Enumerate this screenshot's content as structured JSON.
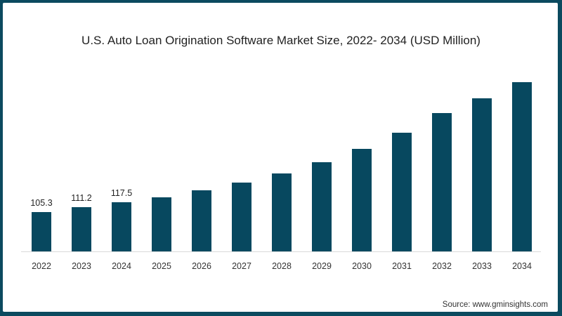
{
  "chart_data": {
    "type": "bar",
    "title": "U.S. Auto Loan Origination Software Market Size, 2022- 2034 (USD Million)",
    "xlabel": "",
    "ylabel": "USD Million",
    "categories": [
      "2022",
      "2023",
      "2024",
      "2025",
      "2026",
      "2027",
      "2028",
      "2029",
      "2030",
      "2031",
      "2032",
      "2033",
      "2034"
    ],
    "values": [
      105.3,
      111.2,
      117.5,
      124.7,
      134.1,
      144.4,
      156.6,
      171.6,
      189.4,
      211.0,
      237.3,
      257.0,
      278.6
    ],
    "data_labels": [
      "105.3",
      "111.2",
      "117.5",
      "",
      "",
      "",
      "",
      "",
      "",
      "",
      "",
      "",
      ""
    ],
    "grid": false,
    "legend": null,
    "bar_color": "#07485f",
    "source": "Source: www.gminsights.com"
  },
  "frame_color": "#0b4a5f"
}
